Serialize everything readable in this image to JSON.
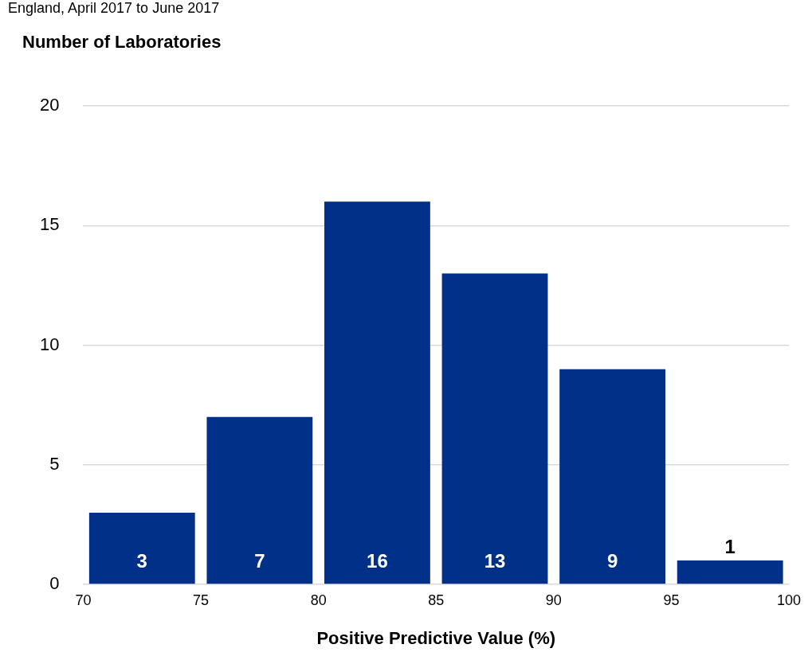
{
  "chart_data": {
    "type": "histogram",
    "subtitle": "England, April 2017 to June 2017",
    "ylabel": "Number of Laboratories",
    "xlabel": "Positive Predictive Value (%)",
    "bins": [
      70,
      75,
      80,
      85,
      90,
      95,
      100
    ],
    "values": [
      3,
      7,
      16,
      13,
      9,
      1
    ],
    "color": "#003087",
    "xlim": [
      70,
      100
    ],
    "xticks": [
      70,
      75,
      80,
      85,
      90,
      95,
      100
    ],
    "ylim": [
      0,
      20
    ],
    "yticks": [
      0,
      5,
      10,
      15,
      20
    ],
    "grid": "y",
    "data_labels": true
  }
}
